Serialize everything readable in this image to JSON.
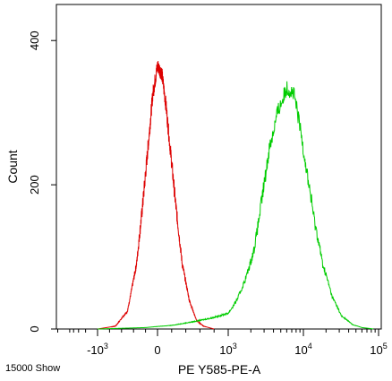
{
  "chart_data": {
    "type": "line",
    "xlabel": "PE Y585-PE-A",
    "ylabel": "Count",
    "footer_note": "15000 Show",
    "x_scale": "logicle",
    "x_ticks": [
      {
        "label": "-10",
        "exp": "3"
      },
      {
        "label": "0",
        "exp": ""
      },
      {
        "label": "10",
        "exp": "3"
      },
      {
        "label": "10",
        "exp": "4"
      },
      {
        "label": "10",
        "exp": "5"
      }
    ],
    "ylim": [
      0,
      450
    ],
    "y_ticks": [
      "0",
      "200",
      "400"
    ],
    "grid": false,
    "legend": "none",
    "series": [
      {
        "color": "#dd0000",
        "points": [
          [
            -1000,
            0
          ],
          [
            -700,
            4
          ],
          [
            -500,
            25
          ],
          [
            -350,
            90
          ],
          [
            -250,
            170
          ],
          [
            -150,
            260
          ],
          [
            -80,
            325
          ],
          [
            0,
            365
          ],
          [
            60,
            355
          ],
          [
            120,
            310
          ],
          [
            180,
            250
          ],
          [
            260,
            170
          ],
          [
            350,
            90
          ],
          [
            450,
            40
          ],
          [
            550,
            12
          ],
          [
            650,
            4
          ],
          [
            800,
            0
          ]
        ]
      },
      {
        "color": "#00cc00",
        "points": [
          [
            -1000,
            0
          ],
          [
            -200,
            2
          ],
          [
            200,
            5
          ],
          [
            500,
            10
          ],
          [
            800,
            16
          ],
          [
            1000,
            22
          ],
          [
            1300,
            40
          ],
          [
            1700,
            70
          ],
          [
            2200,
            110
          ],
          [
            2800,
            180
          ],
          [
            3500,
            250
          ],
          [
            4500,
            300
          ],
          [
            6000,
            335
          ],
          [
            7500,
            325
          ],
          [
            9000,
            280
          ],
          [
            11000,
            220
          ],
          [
            14000,
            150
          ],
          [
            18000,
            90
          ],
          [
            24000,
            45
          ],
          [
            32000,
            18
          ],
          [
            45000,
            6
          ],
          [
            60000,
            2
          ],
          [
            85000,
            0
          ]
        ]
      }
    ]
  }
}
